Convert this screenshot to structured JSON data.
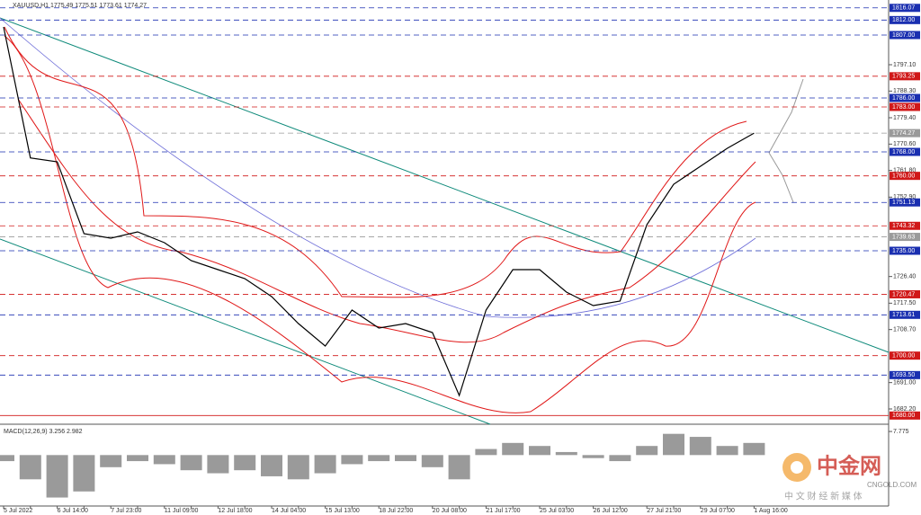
{
  "chart_data": [
    {
      "type": "line",
      "title": "XAUUSD,H1  1775.49 1775.51 1773.61 1774.27",
      "color": "#000000",
      "categories": [
        "5 Jul 2022",
        null,
        "6 Jul 14:00",
        null,
        "7 Jul 23:00",
        null,
        "11 Jul 09:00",
        null,
        "12 Jul 18:00",
        null,
        "14 Jul 04:00",
        null,
        "15 Jul 13:00",
        null,
        "18 Jul 22:00",
        null,
        "20 Jul 08:00",
        null,
        "21 Jul 17:00",
        null,
        "25 Jul 03:00",
        null,
        "26 Jul 12:00",
        null,
        "27 Jul 21:00",
        null,
        "29 Jul 07:00",
        null,
        "1 Aug 16:00"
      ],
      "values": [
        1809.7,
        1766,
        1764.7,
        1740.7,
        1739.2,
        1741.3,
        1737.7,
        1731.7,
        1728.7,
        1725.7,
        1719.7,
        1710.7,
        1703.2,
        1715.2,
        1709.2,
        1710.7,
        1707.7,
        1686.7,
        1715.2,
        1728.7,
        1728.7,
        1721.2,
        1716.7,
        1718.2,
        1743.7,
        1757.2,
        1763.2,
        1769.2,
        1774.27
      ],
      "ylim": [
        1677.1,
        1818.7
      ],
      "yticks": [
        {
          "value": 1797.1,
          "label": "1797.10"
        },
        {
          "value": 1788.3,
          "label": "1788.30"
        },
        {
          "value": 1779.4,
          "label": "1779.40"
        },
        {
          "value": 1770.6,
          "label": "1770.60"
        },
        {
          "value": 1761.8,
          "label": "1761.80"
        },
        {
          "value": 1752.9,
          "label": "1752.90"
        },
        {
          "value": 1726.4,
          "label": "1726.40"
        },
        {
          "value": 1717.5,
          "label": "1717.50"
        },
        {
          "value": 1708.7,
          "label": "1708.70"
        },
        {
          "value": 1691,
          "label": "1691.00"
        },
        {
          "value": 1682.2,
          "label": "1682.20"
        }
      ],
      "levels": [
        {
          "value": 1816.07,
          "label": "1816.07",
          "color": "#1a2fb0"
        },
        {
          "value": 1812,
          "label": "1812.00",
          "color": "#1a2fb0"
        },
        {
          "value": 1807,
          "label": "1807.00",
          "color": "#1a2fb0"
        },
        {
          "value": 1793.25,
          "label": "1793.25",
          "color": "#d01818"
        },
        {
          "value": 1786,
          "label": "1786.00",
          "color": "#1a2fb0"
        },
        {
          "value": 1783,
          "label": "1783.00",
          "color": "#d01818"
        },
        {
          "value": 1774.27,
          "label": "1774.27",
          "color": "#9a9a9a"
        },
        {
          "value": 1768,
          "label": "1768.00",
          "color": "#1a2fb0"
        },
        {
          "value": 1760,
          "label": "1760.00",
          "color": "#d01818"
        },
        {
          "value": 1751.13,
          "label": "1751.13",
          "color": "#1a2fb0"
        },
        {
          "value": 1743.32,
          "label": "1743.32",
          "color": "#d01818"
        },
        {
          "value": 1739.63,
          "label": "1739.63",
          "color": "#9a9a9a"
        },
        {
          "value": 1735,
          "label": "1735.00",
          "color": "#1a2fb0"
        },
        {
          "value": 1720.47,
          "label": "1720.47",
          "color": "#d01818"
        },
        {
          "value": 1713.61,
          "label": "1713.61",
          "color": "#1a2fb0"
        },
        {
          "value": 1700,
          "label": "1700.00",
          "color": "#d01818"
        },
        {
          "value": 1693.5,
          "label": "1693.50",
          "color": "#1a2fb0"
        },
        {
          "value": 1680,
          "label": "1680.00",
          "color": "#d01818"
        }
      ]
    },
    {
      "type": "bar",
      "title": "MACD(12,26,9) 3.256 2.982",
      "color": "#9a9a9a",
      "values": [
        -2,
        -8,
        -14,
        -12,
        -4,
        -2,
        -3,
        -5,
        -6,
        -5,
        -7,
        -8,
        -6,
        -3,
        -2,
        -2,
        -4,
        -8,
        2,
        4,
        3,
        1,
        -1,
        -2,
        3,
        7,
        6,
        3,
        4
      ],
      "ylim": [
        -16.8,
        9.28
      ],
      "yticks": [
        {
          "value": 7.775,
          "label": "7.775"
        }
      ]
    }
  ],
  "watermark": {
    "logo": "中金网",
    "site": "CNGOLD.COM",
    "slogan": "中 文 财 经 新 媒 体"
  }
}
